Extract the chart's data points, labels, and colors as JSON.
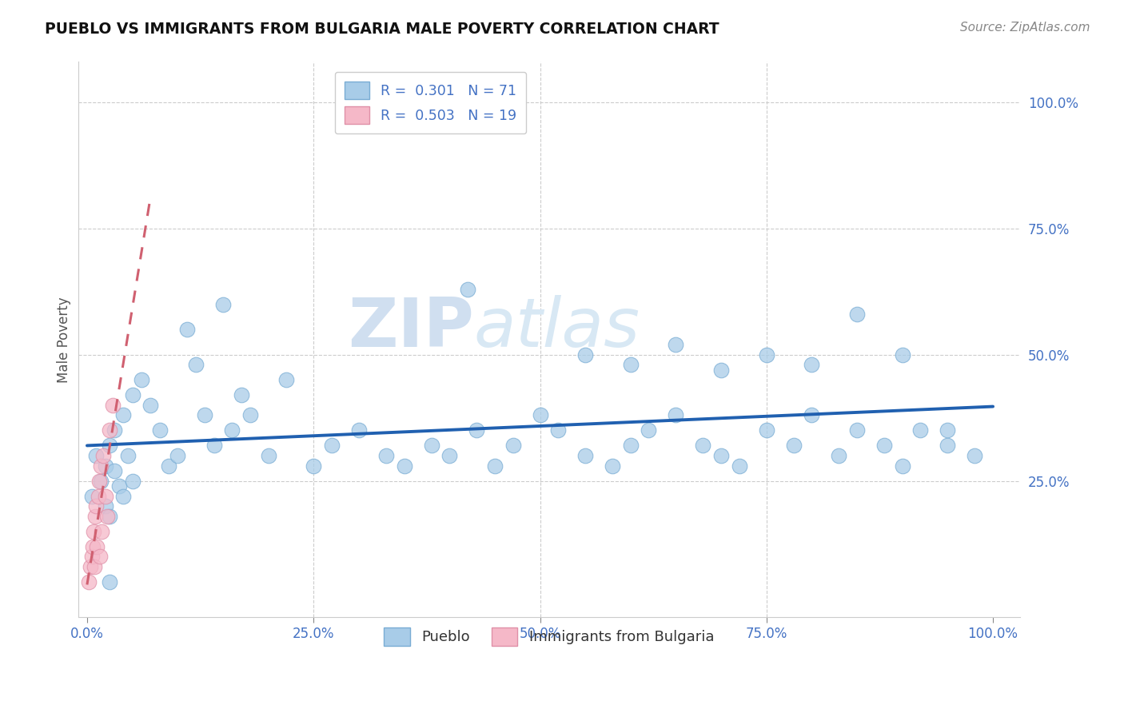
{
  "title": "PUEBLO VS IMMIGRANTS FROM BULGARIA MALE POVERTY CORRELATION CHART",
  "source": "Source: ZipAtlas.com",
  "ylabel": "Male Poverty",
  "watermark_zip": "ZIP",
  "watermark_atlas": "atlas",
  "pueblo_color": "#a8cce8",
  "pueblo_edge_color": "#7aadd4",
  "bulgaria_color": "#f5b8c8",
  "bulgaria_edge_color": "#e090a8",
  "pueblo_line_color": "#2060b0",
  "bulgaria_line_color": "#d06070",
  "pueblo_r": 0.301,
  "pueblo_n": 71,
  "bulgaria_r": 0.503,
  "bulgaria_n": 19,
  "xtick_labels": [
    "0.0%",
    "25.0%",
    "50.0%",
    "75.0%",
    "100.0%"
  ],
  "xtick_positions": [
    0.0,
    0.25,
    0.5,
    0.75,
    1.0
  ],
  "ytick_labels": [
    "100.0%",
    "75.0%",
    "50.0%",
    "25.0%"
  ],
  "ytick_positions": [
    1.0,
    0.75,
    0.5,
    0.25
  ],
  "legend1_label": "Pueblo",
  "legend2_label": "Immigrants from Bulgaria",
  "pueblo_x": [
    0.005,
    0.01,
    0.015,
    0.02,
    0.02,
    0.025,
    0.025,
    0.03,
    0.03,
    0.035,
    0.04,
    0.04,
    0.045,
    0.05,
    0.05,
    0.06,
    0.07,
    0.08,
    0.09,
    0.1,
    0.11,
    0.12,
    0.13,
    0.14,
    0.15,
    0.16,
    0.17,
    0.18,
    0.2,
    0.22,
    0.25,
    0.27,
    0.3,
    0.33,
    0.35,
    0.38,
    0.4,
    0.43,
    0.45,
    0.47,
    0.5,
    0.52,
    0.55,
    0.58,
    0.6,
    0.62,
    0.65,
    0.68,
    0.7,
    0.72,
    0.75,
    0.78,
    0.8,
    0.83,
    0.85,
    0.88,
    0.9,
    0.92,
    0.95,
    0.98,
    0.42,
    0.55,
    0.6,
    0.65,
    0.7,
    0.75,
    0.8,
    0.85,
    0.9,
    0.95,
    0.025
  ],
  "pueblo_y": [
    0.22,
    0.3,
    0.25,
    0.28,
    0.2,
    0.32,
    0.18,
    0.27,
    0.35,
    0.24,
    0.38,
    0.22,
    0.3,
    0.42,
    0.25,
    0.45,
    0.4,
    0.35,
    0.28,
    0.3,
    0.55,
    0.48,
    0.38,
    0.32,
    0.6,
    0.35,
    0.42,
    0.38,
    0.3,
    0.45,
    0.28,
    0.32,
    0.35,
    0.3,
    0.28,
    0.32,
    0.3,
    0.35,
    0.28,
    0.32,
    0.38,
    0.35,
    0.3,
    0.28,
    0.32,
    0.35,
    0.38,
    0.32,
    0.3,
    0.28,
    0.35,
    0.32,
    0.38,
    0.3,
    0.35,
    0.32,
    0.28,
    0.35,
    0.32,
    0.3,
    0.63,
    0.5,
    0.48,
    0.52,
    0.47,
    0.5,
    0.48,
    0.58,
    0.5,
    0.35,
    0.05
  ],
  "bulgaria_x": [
    0.002,
    0.004,
    0.005,
    0.006,
    0.007,
    0.008,
    0.009,
    0.01,
    0.011,
    0.012,
    0.013,
    0.014,
    0.015,
    0.016,
    0.018,
    0.02,
    0.022,
    0.025,
    0.028
  ],
  "bulgaria_y": [
    0.05,
    0.08,
    0.1,
    0.12,
    0.15,
    0.08,
    0.18,
    0.2,
    0.12,
    0.22,
    0.25,
    0.1,
    0.28,
    0.15,
    0.3,
    0.22,
    0.18,
    0.35,
    0.4
  ]
}
